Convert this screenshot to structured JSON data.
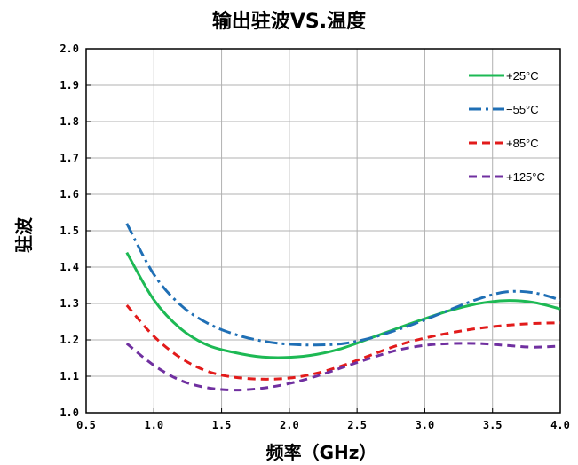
{
  "chart_data": {
    "type": "line",
    "title": "输出驻波VS.温度",
    "xlabel": "频率（GHz）",
    "ylabel": "驻波",
    "xlim": [
      0.5,
      4.0
    ],
    "ylim": [
      1.0,
      2.0
    ],
    "xticks": [
      "0.5",
      "1.0",
      "1.5",
      "2.0",
      "2.5",
      "3.0",
      "3.5",
      "4.0"
    ],
    "yticks": [
      "1.0",
      "1.1",
      "1.2",
      "1.3",
      "1.4",
      "1.5",
      "1.6",
      "1.7",
      "1.8",
      "1.9",
      "2.0"
    ],
    "grid": true,
    "legend_position": "top-right",
    "x": [
      0.8,
      1.0,
      1.2,
      1.4,
      1.6,
      1.8,
      2.0,
      2.2,
      2.4,
      2.6,
      2.8,
      3.0,
      3.2,
      3.4,
      3.6,
      3.8,
      4.0
    ],
    "series": [
      {
        "name": "+25°C",
        "color": "#1db954",
        "dash": "solid",
        "values": [
          1.44,
          1.31,
          1.23,
          1.185,
          1.165,
          1.153,
          1.152,
          1.16,
          1.178,
          1.205,
          1.232,
          1.258,
          1.282,
          1.3,
          1.308,
          1.303,
          1.285
        ]
      },
      {
        "name": "−55°C",
        "color": "#1f6fb5",
        "dash": "dashdot",
        "values": [
          1.52,
          1.38,
          1.295,
          1.245,
          1.215,
          1.197,
          1.188,
          1.186,
          1.19,
          1.205,
          1.228,
          1.255,
          1.285,
          1.313,
          1.332,
          1.33,
          1.31
        ]
      },
      {
        "name": "+85°C",
        "color": "#e21b1b",
        "dash": "dashed",
        "values": [
          1.295,
          1.21,
          1.15,
          1.113,
          1.097,
          1.092,
          1.095,
          1.108,
          1.13,
          1.158,
          1.185,
          1.205,
          1.22,
          1.232,
          1.24,
          1.245,
          1.247
        ]
      },
      {
        "name": "+125°C",
        "color": "#7030a0",
        "dash": "dashed",
        "values": [
          1.19,
          1.13,
          1.088,
          1.068,
          1.062,
          1.067,
          1.08,
          1.1,
          1.125,
          1.15,
          1.172,
          1.185,
          1.19,
          1.19,
          1.185,
          1.18,
          1.183
        ]
      }
    ]
  }
}
